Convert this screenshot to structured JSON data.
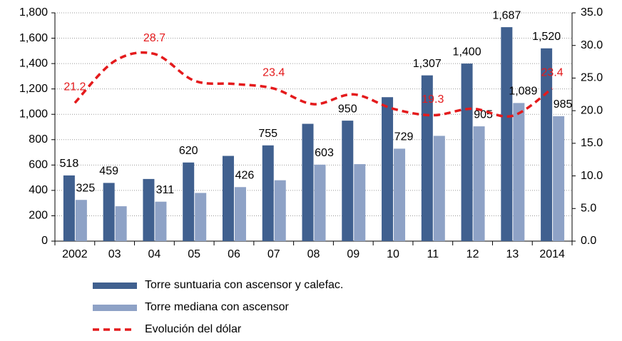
{
  "chart_data": {
    "type": "bar",
    "categories": [
      "2002",
      "03",
      "04",
      "05",
      "06",
      "07",
      "08",
      "09",
      "10",
      "11",
      "12",
      "13",
      "2014"
    ],
    "series": [
      {
        "name": "Torre suntuaria con ascensor y calefac.",
        "color": "#40608f",
        "values": [
          518,
          459,
          490,
          620,
          672,
          755,
          925,
          950,
          1135,
          1307,
          1400,
          1687,
          1520
        ],
        "value_labels": [
          "518",
          "459",
          null,
          "620",
          null,
          "755",
          null,
          "950",
          null,
          "1,307",
          "1,400",
          "1,687",
          "1,520"
        ]
      },
      {
        "name": "Torre mediana con ascensor",
        "color": "#8ea2c6",
        "values": [
          325,
          275,
          311,
          380,
          426,
          480,
          603,
          607,
          729,
          830,
          905,
          1089,
          985
        ],
        "value_labels": [
          "325",
          null,
          "311",
          null,
          "426",
          null,
          "603",
          null,
          "729",
          null,
          "905",
          "1,089",
          "985"
        ]
      },
      {
        "name": "Evolución del dólar",
        "color": "#e41a1c",
        "type": "line",
        "axis": "y2",
        "values": [
          21.2,
          27.6,
          28.7,
          24.6,
          24.1,
          23.4,
          21.0,
          22.5,
          20.3,
          19.3,
          20.3,
          19.2,
          23.4
        ],
        "value_labels": [
          "21.2",
          null,
          "28.7",
          null,
          null,
          "23.4",
          null,
          null,
          null,
          "19.3",
          null,
          null,
          "23.4"
        ]
      }
    ],
    "ylim": [
      0,
      1800
    ],
    "yticks": [
      0,
      200,
      400,
      600,
      800,
      {
        "value": 1000,
        "label": "1,000"
      },
      {
        "value": 1200,
        "label": "1,200"
      },
      {
        "value": 1400,
        "label": "1,400"
      },
      {
        "value": 1600,
        "label": "1,600"
      },
      {
        "value": 1800,
        "label": "1,800"
      }
    ],
    "y2lim": [
      0,
      35
    ],
    "y2ticks": [
      {
        "value": 0,
        "label": "0.0"
      },
      {
        "value": 5,
        "label": "5.0"
      },
      {
        "value": 10,
        "label": "10.0"
      },
      {
        "value": 15,
        "label": "15.0"
      },
      {
        "value": 20,
        "label": "20.0"
      },
      {
        "value": 25,
        "label": "25.0"
      },
      {
        "value": 30,
        "label": "30.0"
      },
      {
        "value": 35,
        "label": "35.0"
      }
    ],
    "grid": true
  }
}
